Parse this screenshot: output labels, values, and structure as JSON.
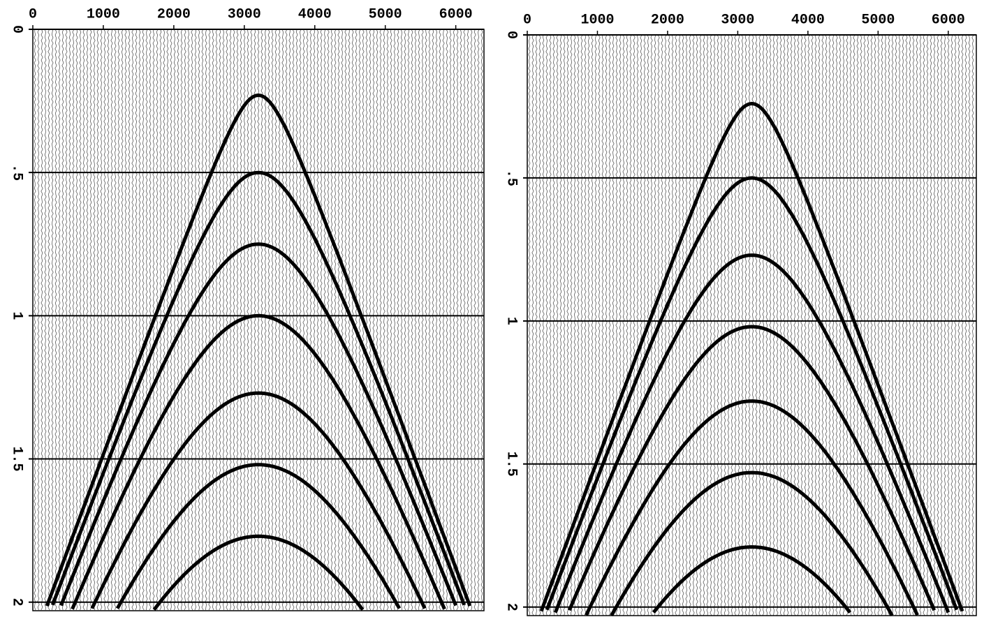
{
  "chart_data": [
    {
      "type": "wiggle",
      "xlim": [
        0,
        6400
      ],
      "xticks": [
        0,
        1000,
        2000,
        3000,
        4000,
        5000,
        6000
      ],
      "ylim": [
        0,
        2.03
      ],
      "yticks": [
        0,
        {
          "value": 0.5,
          "label": ".5"
        },
        1,
        1.5,
        2
      ],
      "values": [
        0.23,
        0.5,
        0.75,
        1.0,
        1.27,
        1.52,
        1.77
      ],
      "color": "#000000",
      "grid": true
    },
    {
      "type": "wiggle",
      "xlim": [
        0,
        6400
      ],
      "xticks": [
        0,
        1000,
        2000,
        3000,
        4000,
        5000,
        6000
      ],
      "ylim": [
        0,
        2.03
      ],
      "yticks": [
        0,
        {
          "value": 0.5,
          "label": ".5"
        },
        1,
        1.5,
        2
      ],
      "values": [
        0.24,
        0.5,
        0.77,
        1.02,
        1.28,
        1.53,
        1.79
      ],
      "color": "#000000",
      "grid": true
    }
  ]
}
